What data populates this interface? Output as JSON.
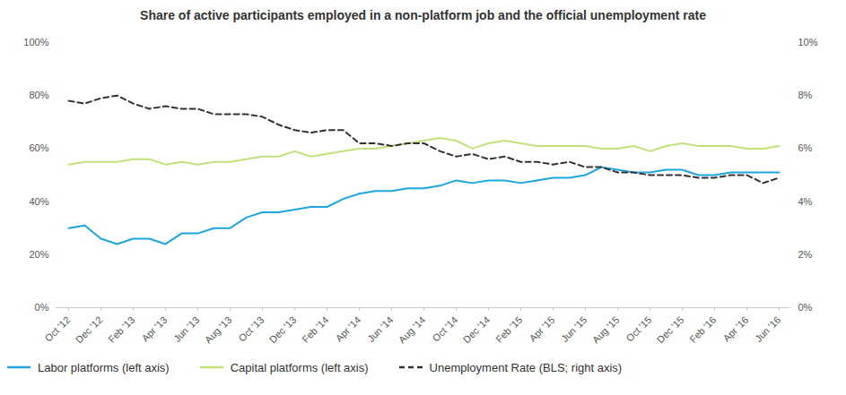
{
  "chart_data": {
    "type": "line",
    "title": "Share of active participants employed in a non-platform job and the official unemployment rate",
    "categories": [
      "Oct '12",
      null,
      "Dec '12",
      null,
      "Feb '13",
      null,
      "Apr '13",
      null,
      "Jun '13",
      null,
      "Aug '13",
      null,
      "Oct '13",
      null,
      "Dec '13",
      null,
      "Feb '14",
      null,
      "Apr '14",
      null,
      "Jun '14",
      null,
      "Aug '14",
      null,
      "Oct '14",
      null,
      "Dec '14",
      null,
      "Feb '15",
      null,
      "Apr '15",
      null,
      "Jun '15",
      null,
      "Aug '15",
      null,
      "Oct '15",
      null,
      "Dec '15",
      null,
      "Feb '16",
      null,
      "Apr '16",
      null,
      "Jun '16"
    ],
    "series": [
      {
        "name": "Labor platforms (left axis)",
        "color": "#1ea6dc",
        "line_style": "solid",
        "values": [
          30,
          31,
          26,
          24,
          26,
          26,
          24,
          28,
          28,
          30,
          30,
          34,
          36,
          36,
          37,
          38,
          38,
          41,
          43,
          44,
          44,
          45,
          45,
          46,
          48,
          47,
          48,
          48,
          47,
          48,
          49,
          49,
          50,
          53,
          52,
          51,
          51,
          52,
          52,
          50,
          50,
          51,
          51,
          51,
          51
        ]
      },
      {
        "name": "Capital platforms (left axis)",
        "color": "#c3e07c",
        "line_style": "solid",
        "values": [
          54,
          55,
          55,
          55,
          56,
          56,
          54,
          55,
          54,
          55,
          55,
          56,
          57,
          57,
          59,
          57,
          58,
          59,
          60,
          60,
          61,
          62,
          63,
          64,
          63,
          60,
          62,
          63,
          62,
          61,
          61,
          61,
          61,
          60,
          60,
          61,
          59,
          61,
          62,
          61,
          61,
          61,
          60,
          60,
          61
        ]
      },
      {
        "name": "Unemployment Rate (BLS; right axis)",
        "color": "#333333",
        "line_style": "dashed",
        "axis": "y2",
        "values": [
          7.8,
          7.7,
          7.9,
          8.0,
          7.7,
          7.5,
          7.6,
          7.5,
          7.5,
          7.3,
          7.3,
          7.3,
          7.2,
          6.9,
          6.7,
          6.6,
          6.7,
          6.7,
          6.2,
          6.2,
          6.1,
          6.2,
          6.2,
          5.9,
          5.7,
          5.8,
          5.6,
          5.7,
          5.5,
          5.5,
          5.4,
          5.5,
          5.3,
          5.3,
          5.1,
          5.1,
          5.0,
          5.0,
          5.0,
          4.9,
          4.9,
          5.0,
          5.0,
          4.7,
          4.9
        ]
      }
    ],
    "ylim": [
      0,
      100
    ],
    "yticks": [
      {
        "value": 0,
        "label": "0%"
      },
      {
        "value": 20,
        "label": "20%"
      },
      {
        "value": 40,
        "label": "40%"
      },
      {
        "value": 60,
        "label": "60%"
      },
      {
        "value": 80,
        "label": "80%"
      },
      {
        "value": 100,
        "label": "100%"
      }
    ],
    "y2lim": [
      0,
      10
    ],
    "y2ticks": [
      {
        "value": 0,
        "label": "0%"
      },
      {
        "value": 2,
        "label": "2%"
      },
      {
        "value": 4,
        "label": "4%"
      },
      {
        "value": 6,
        "label": "6%"
      },
      {
        "value": 8,
        "label": "8%"
      },
      {
        "value": 10,
        "label": "10%"
      }
    ],
    "grid": false,
    "legend": "bottom"
  }
}
